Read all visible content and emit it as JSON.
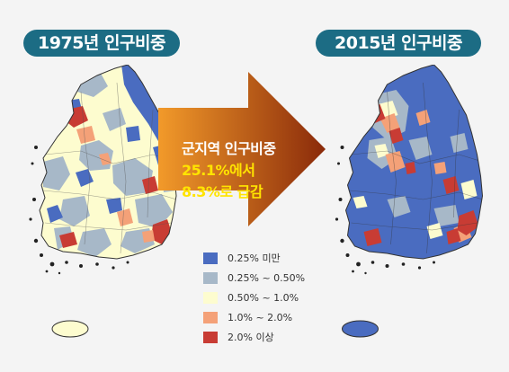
{
  "titles": {
    "left": "1975년 인구비중",
    "right": "2015년 인구비중"
  },
  "arrow": {
    "line1": "군지역 인구비중",
    "line2": "25.1%에서",
    "line3": "8.3%로 급감"
  },
  "legend": [
    {
      "label": "0.25% 미만",
      "color": "#4a6cc0"
    },
    {
      "label": "0.25% ~ 0.50%",
      "color": "#a7b8c8"
    },
    {
      "label": "0.50% ~  1.0%",
      "color": "#fdfccf"
    },
    {
      "label": "1.0% ~ 2.0%",
      "color": "#f4a178"
    },
    {
      "label": "2.0% 이상",
      "color": "#c83c34"
    }
  ],
  "colors": {
    "title_bg": "#1c6c84",
    "arrow_start": "#f29a2a",
    "arrow_end": "#8a2a0a",
    "highlight_text": "#ffe400"
  }
}
